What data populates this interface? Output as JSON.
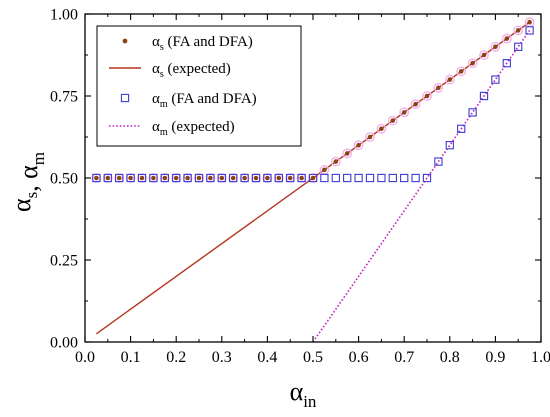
{
  "chart_data": {
    "type": "scatter",
    "xlabel": "α_in",
    "ylabel": "α_s, α_m",
    "xlim": [
      0.0,
      1.0
    ],
    "ylim": [
      0.0,
      1.0
    ],
    "x_ticks": [
      "0.0",
      "0.1",
      "0.2",
      "0.3",
      "0.4",
      "0.5",
      "0.6",
      "0.7",
      "0.8",
      "0.9",
      "1.0"
    ],
    "y_ticks": [
      "0.00",
      "0.25",
      "0.50",
      "0.75",
      "1.00"
    ],
    "grid": false,
    "legend_position": "top-left",
    "series": [
      {
        "name": "αs (FA and DFA)",
        "kind": "markers",
        "marker": "filled-circle",
        "color": "#8b4513",
        "x": [
          0.025,
          0.05,
          0.075,
          0.1,
          0.125,
          0.15,
          0.175,
          0.2,
          0.225,
          0.25,
          0.275,
          0.3,
          0.325,
          0.35,
          0.375,
          0.4,
          0.425,
          0.45,
          0.475,
          0.5,
          0.525,
          0.55,
          0.575,
          0.6,
          0.625,
          0.65,
          0.675,
          0.7,
          0.725,
          0.75,
          0.775,
          0.8,
          0.825,
          0.85,
          0.875,
          0.9,
          0.925,
          0.95,
          0.975
        ],
        "y": [
          0.5,
          0.5,
          0.5,
          0.5,
          0.5,
          0.5,
          0.5,
          0.5,
          0.5,
          0.5,
          0.5,
          0.5,
          0.5,
          0.5,
          0.5,
          0.5,
          0.5,
          0.5,
          0.5,
          0.5,
          0.525,
          0.55,
          0.575,
          0.6,
          0.625,
          0.65,
          0.675,
          0.7,
          0.725,
          0.75,
          0.775,
          0.8,
          0.825,
          0.85,
          0.875,
          0.9,
          0.925,
          0.95,
          0.975
        ]
      },
      {
        "name": "αs (expected)",
        "kind": "line",
        "style": "solid",
        "color": "#b5341e",
        "x": [
          0.025,
          0.975
        ],
        "y": [
          0.025,
          0.975
        ]
      },
      {
        "name": "αm (FA and DFA)",
        "kind": "markers",
        "marker": "open-square",
        "color": "#3b3bd6",
        "x": [
          0.025,
          0.05,
          0.075,
          0.1,
          0.125,
          0.15,
          0.175,
          0.2,
          0.225,
          0.25,
          0.275,
          0.3,
          0.325,
          0.35,
          0.375,
          0.4,
          0.425,
          0.45,
          0.475,
          0.5,
          0.525,
          0.55,
          0.575,
          0.6,
          0.625,
          0.65,
          0.675,
          0.7,
          0.725,
          0.75,
          0.775,
          0.8,
          0.825,
          0.85,
          0.875,
          0.9,
          0.925,
          0.95,
          0.975
        ],
        "y": [
          0.5,
          0.5,
          0.5,
          0.5,
          0.5,
          0.5,
          0.5,
          0.5,
          0.5,
          0.5,
          0.5,
          0.5,
          0.5,
          0.5,
          0.5,
          0.5,
          0.5,
          0.5,
          0.5,
          0.5,
          0.5,
          0.5,
          0.5,
          0.5,
          0.5,
          0.5,
          0.5,
          0.5,
          0.5,
          0.5,
          0.55,
          0.6,
          0.65,
          0.7,
          0.75,
          0.8,
          0.85,
          0.9,
          0.95
        ]
      },
      {
        "name": "αm (expected)",
        "kind": "line",
        "style": "dotted",
        "color": "#c026c0",
        "x": [
          0.5,
          0.975
        ],
        "y": [
          0.0,
          0.95
        ]
      }
    ],
    "legend": [
      {
        "symbol": "α",
        "sub": "s",
        "text": " (FA and DFA)"
      },
      {
        "symbol": "α",
        "sub": "s",
        "text": " (expected)"
      },
      {
        "symbol": "α",
        "sub": "m",
        "text": " (FA and DFA)"
      },
      {
        "symbol": "α",
        "sub": "m",
        "text": " (expected)"
      }
    ],
    "axis_titles": {
      "x": {
        "symbol": "α",
        "sub": "in"
      },
      "y": [
        {
          "symbol": "α",
          "sub": "s"
        },
        {
          "text": ", "
        },
        {
          "symbol": "α",
          "sub": "m"
        }
      ]
    }
  }
}
